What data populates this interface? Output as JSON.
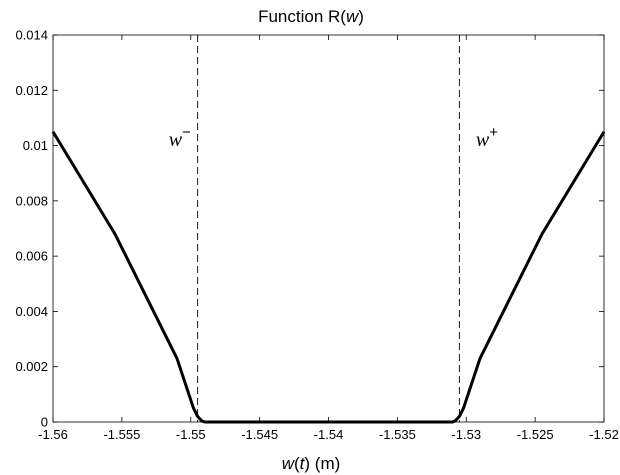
{
  "chart_data": {
    "type": "line",
    "title": {
      "prefix": "Function R(",
      "var": "w",
      "suffix": ")"
    },
    "xlabel": {
      "var": "w",
      "mid": "(",
      "var2": "t",
      "suffix": ") (m)"
    },
    "ylabel": "",
    "xlim": [
      -1.56,
      -1.52
    ],
    "ylim": [
      0,
      0.014
    ],
    "grid": false,
    "x_ticks": [
      -1.56,
      -1.555,
      -1.55,
      -1.545,
      -1.54,
      -1.535,
      -1.53,
      -1.525,
      -1.52
    ],
    "x_tick_labels": [
      "-1.56",
      "-1.555",
      "-1.55",
      "-1.545",
      "-1.54",
      "-1.535",
      "-1.53",
      "-1.525",
      "-1.52"
    ],
    "y_ticks": [
      0,
      0.002,
      0.004,
      0.006,
      0.008,
      0.01,
      0.012,
      0.014
    ],
    "y_tick_labels": [
      "0",
      "0.002",
      "0.004",
      "0.006",
      "0.008",
      "0.01",
      "0.012",
      "0.014"
    ],
    "series": [
      {
        "color": "#000000",
        "line_style": "solid",
        "x": [
          -1.56,
          -1.5555,
          -1.551,
          -1.5498,
          -1.5495,
          -1.5492,
          -1.549,
          -1.545,
          -1.54,
          -1.535,
          -1.531,
          -1.5308,
          -1.5305,
          -1.5302,
          -1.529,
          -1.5245,
          -1.52
        ],
        "y": [
          0.0105,
          0.0068,
          0.0023,
          0.0005,
          0.0002,
          4e-05,
          0,
          0,
          0,
          0,
          0,
          4e-05,
          0.0002,
          0.0005,
          0.0023,
          0.0068,
          0.0105
        ]
      }
    ],
    "vlines": [
      {
        "x": -1.5495,
        "style": "dashed",
        "color": "#000000"
      },
      {
        "x": -1.5305,
        "style": "dashed",
        "color": "#000000"
      }
    ],
    "annotations": [
      {
        "base": "w",
        "sup": "−",
        "x": -1.5516,
        "y": 0.0102
      },
      {
        "base": "w",
        "sup": "+",
        "x": -1.5293,
        "y": 0.0102
      }
    ]
  }
}
